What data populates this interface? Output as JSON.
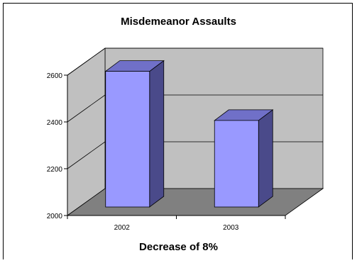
{
  "chart_data": {
    "type": "bar",
    "title": "Misdemeanor Assaults",
    "xlabel": "Decrease of 8%",
    "ylabel": "",
    "categories": [
      "2002",
      "2003"
    ],
    "values": [
      2580,
      2370
    ],
    "ylim": [
      2000,
      2600
    ],
    "yticks": [
      "2000",
      "2200",
      "2400",
      "2600"
    ],
    "grid": true,
    "legend": "none",
    "style": "3d-column"
  },
  "colors": {
    "bar_front": "#9999ff",
    "bar_side": "#4a4a8a",
    "bar_top": "#7070c8",
    "wall": "#c0c0c0",
    "floor": "#808080",
    "frame_border": "#000000"
  }
}
